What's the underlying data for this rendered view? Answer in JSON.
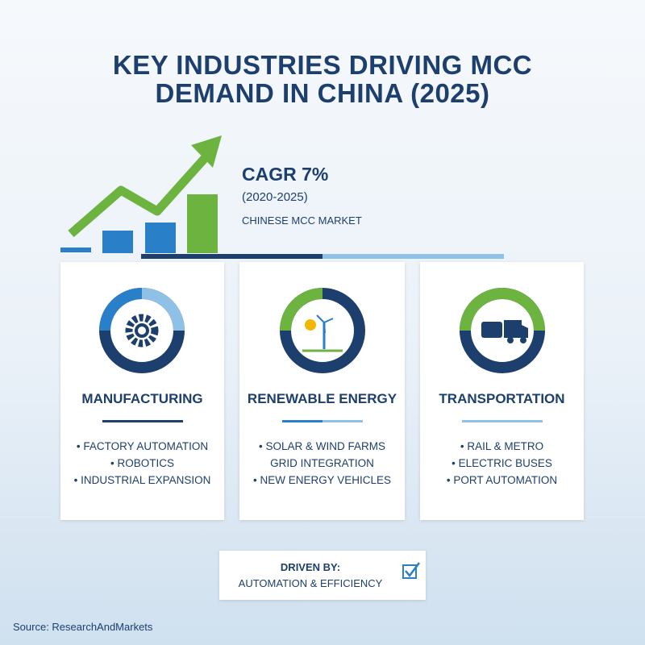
{
  "header": {
    "title": [
      "KEY INDUSTRIES DRIVING MCC",
      "DEMAND IN CHINA (2025)"
    ]
  },
  "highlight": {
    "headline": "CAGR 7%",
    "period": "(2020-2025)",
    "caption": "CHINESE MCC MARKET"
  },
  "cards": [
    {
      "title": "MANUFACTURING",
      "items": [
        "FACTORY AUTOMATION",
        "ROBOTICS",
        "INDUSTRIAL EXPANSION"
      ]
    },
    {
      "title": "RENEWABLE ENERGY",
      "items": [
        "SOLAR & WIND FARMS",
        "GRID INTEGRATION",
        "NEW ENERGY VEHICLES"
      ]
    },
    {
      "title": "TRANSPORTATION",
      "items": [
        "RAIL & METRO",
        "ELECTRIC BUSES",
        "PORT AUTOMATION"
      ]
    }
  ],
  "footer_box": {
    "label": "DRIVEN BY:",
    "text": "AUTOMATION & EFFICIENCY"
  },
  "source": "Source: ResearchAndMarkets"
}
